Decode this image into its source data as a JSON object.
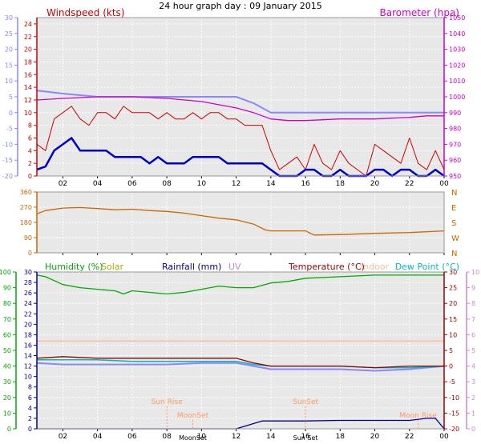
{
  "title": "24 hour graph day : 09 January 2015",
  "colors": {
    "wind_speed": "#cc0000",
    "wind_avg": "#0000cc",
    "barometer": "#cc00cc",
    "temp_left": "#8888ff",
    "direction": "#cc6600",
    "humidity": "#00aa00",
    "solar": "#aaaa00",
    "rainfall": "#000099",
    "uv": "#cc88cc",
    "temperature": "#990000",
    "indoor": "#ffbb99",
    "dewpoint": "#00bbbb",
    "sun_moon": "#ff9966",
    "grid_bg": "#e8e8e8"
  },
  "x_axis": {
    "hours": [
      "02",
      "04",
      "06",
      "08",
      "10",
      "12",
      "14",
      "16",
      "18",
      "20",
      "22",
      "00"
    ],
    "start_hour": 0.5,
    "end_hour": 24
  },
  "chart_data": [
    {
      "type": "line",
      "name": "wind-and-barometer",
      "labels": {
        "left": "Windspeed (kts)",
        "right": "Barometer (hpa)"
      },
      "y_left": {
        "ticks": [
          0,
          2,
          4,
          6,
          8,
          10,
          12,
          14,
          16,
          18,
          20,
          22,
          24
        ],
        "range": [
          0,
          25
        ]
      },
      "y_far_left": {
        "ticks": [
          "30",
          "25",
          "20",
          "15",
          "10",
          "5",
          "0",
          "-5",
          "-10",
          "-15",
          "-20"
        ],
        "range": [
          -20,
          30
        ]
      },
      "y_right": {
        "ticks": [
          950,
          960,
          970,
          980,
          990,
          1000,
          1010,
          1020,
          1030,
          1040,
          1050
        ],
        "range": [
          950,
          1050
        ]
      },
      "series": [
        {
          "key": "gust",
          "x": [
            0.5,
            1,
            1.5,
            2,
            2.5,
            3,
            3.5,
            4,
            4.5,
            5,
            5.5,
            6,
            6.5,
            7,
            7.5,
            8,
            8.5,
            9,
            9.5,
            10,
            10.5,
            11,
            11.5,
            12,
            12.5,
            13,
            13.5,
            14,
            14.5,
            15,
            15.5,
            16,
            16.5,
            17,
            17.5,
            18,
            18.5,
            19,
            19.5,
            20,
            20.5,
            21,
            21.5,
            22,
            22.5,
            23,
            23.5,
            24
          ],
          "values": [
            5,
            4,
            9,
            10,
            11,
            9,
            8,
            10,
            10,
            9,
            11,
            10,
            10,
            10,
            9,
            10,
            9,
            9,
            10,
            9,
            10,
            10,
            9,
            9,
            8,
            8,
            8,
            4,
            1,
            2,
            3,
            1,
            5,
            2,
            1,
            4,
            2,
            1,
            0,
            5,
            4,
            3,
            2,
            6,
            2,
            1,
            4,
            1
          ]
        },
        {
          "key": "average",
          "x": [
            0.5,
            1,
            1.5,
            2,
            2.5,
            3,
            3.5,
            4,
            4.5,
            5,
            5.5,
            6,
            6.5,
            7,
            7.5,
            8,
            8.5,
            9,
            9.5,
            10,
            10.5,
            11,
            11.5,
            12,
            12.5,
            13,
            13.5,
            14,
            14.5,
            15,
            15.5,
            16,
            16.5,
            17,
            17.5,
            18,
            18.5,
            19,
            19.5,
            20,
            20.5,
            21,
            21.5,
            22,
            22.5,
            23,
            23.5,
            24
          ],
          "values": [
            1,
            1.5,
            4,
            5,
            6,
            4,
            4,
            4,
            4,
            3,
            3,
            3,
            3,
            2,
            3,
            2,
            2,
            2,
            3,
            3,
            3,
            3,
            2,
            2,
            2,
            2,
            2,
            1,
            0,
            0,
            0,
            1,
            1,
            0,
            0,
            1,
            0,
            0,
            0,
            1,
            1,
            0,
            1,
            1,
            0,
            0,
            1,
            0
          ]
        },
        {
          "key": "barometer",
          "x": [
            0.5,
            2,
            4,
            6,
            8,
            10,
            11,
            12,
            13,
            14,
            15,
            16,
            18,
            20,
            22,
            23,
            24
          ],
          "values": [
            998,
            999,
            1000,
            1000,
            999,
            997,
            995,
            993,
            990,
            986,
            985,
            985,
            986,
            986,
            987,
            988,
            988
          ]
        },
        {
          "key": "temp_far_left",
          "x": [
            0.5,
            2,
            4,
            6,
            8,
            10,
            11,
            12,
            13,
            14,
            15,
            16,
            18,
            20,
            22,
            23,
            24
          ],
          "values": [
            7,
            6,
            5,
            5,
            5,
            5,
            5,
            5,
            3,
            0,
            0,
            0,
            0,
            0,
            0,
            0,
            0
          ]
        }
      ]
    },
    {
      "type": "line",
      "name": "wind-direction",
      "y_left": {
        "ticks": [
          0,
          90,
          180,
          270,
          360
        ],
        "range": [
          0,
          360
        ]
      },
      "y_right": {
        "ticks": [
          "N",
          "W",
          "S",
          "E",
          "N"
        ]
      },
      "series": [
        {
          "key": "direction",
          "x": [
            0.5,
            1,
            2,
            3,
            4,
            5,
            6,
            7,
            8,
            9,
            10,
            11,
            12,
            13,
            13.7,
            14,
            16,
            16.5,
            18,
            20,
            22,
            24
          ],
          "values": [
            230,
            250,
            265,
            268,
            262,
            255,
            258,
            250,
            245,
            235,
            220,
            205,
            195,
            170,
            135,
            130,
            130,
            105,
            108,
            115,
            120,
            130
          ]
        }
      ]
    },
    {
      "type": "line",
      "name": "humidity-temperature-rain",
      "labels": {
        "humidity": "Humidity (%)",
        "solar": "Solar",
        "rainfall": "Rainfall (mm)",
        "uv": "UV",
        "temperature": "Temperature (°C)",
        "indoor": "Indoor",
        "dewpoint": "Dew Point (°C)"
      },
      "y_humidity": {
        "ticks": [
          0,
          10,
          20,
          30,
          40,
          50,
          60,
          70,
          80,
          90,
          100
        ],
        "range": [
          0,
          100
        ]
      },
      "y_rain": {
        "ticks": [
          0,
          2,
          4,
          6,
          8,
          10,
          12,
          14,
          16,
          18,
          20,
          22,
          24,
          26,
          28,
          30
        ],
        "range": [
          0,
          30
        ]
      },
      "y_temp": {
        "ticks": [
          "-20",
          "-15",
          "-10",
          "-5",
          "0",
          "5",
          "10",
          "15",
          "20",
          "25",
          "30"
        ],
        "range": [
          -20,
          30
        ]
      },
      "y_uv": {
        "ticks": [
          0,
          1,
          2,
          3,
          4,
          5,
          6,
          7,
          8,
          9,
          10
        ],
        "range": [
          0,
          10
        ]
      },
      "series": [
        {
          "key": "humidity",
          "x": [
            0.5,
            1,
            2,
            3,
            4,
            5,
            5.5,
            6,
            7,
            8,
            9,
            10,
            11,
            12,
            13,
            14,
            15,
            16,
            18,
            20,
            22,
            24
          ],
          "values": [
            98,
            97,
            92,
            90,
            89,
            88,
            86,
            88,
            87,
            86,
            87,
            89,
            91,
            90,
            90,
            93,
            94,
            96,
            97,
            98,
            98,
            98
          ]
        },
        {
          "key": "temperature",
          "x": [
            0.5,
            2,
            4,
            6,
            8,
            10,
            12,
            13,
            14,
            16,
            18,
            20,
            22,
            24
          ],
          "values": [
            2.5,
            3,
            2.5,
            2.5,
            2.5,
            2.5,
            2.5,
            1,
            0,
            0,
            0,
            -0.5,
            0,
            0
          ]
        },
        {
          "key": "dewpoint",
          "x": [
            0.5,
            2,
            4,
            6,
            8,
            10,
            12,
            13,
            14,
            16,
            18,
            20,
            22,
            24
          ],
          "values": [
            2,
            2,
            2,
            1.5,
            1.5,
            1.5,
            1.5,
            0.5,
            0,
            0,
            0,
            -0.5,
            -0.5,
            0
          ]
        },
        {
          "key": "indoor",
          "x": [
            0.5,
            24
          ],
          "values": [
            8,
            8
          ]
        },
        {
          "key": "temp_blue",
          "x": [
            0.5,
            2,
            4,
            6,
            8,
            10,
            12,
            13,
            14,
            16,
            18,
            20,
            22,
            24
          ],
          "values": [
            1,
            0.5,
            0.5,
            0.5,
            0.5,
            1,
            1,
            0,
            -1,
            -1,
            -1,
            -1.5,
            -1,
            0
          ]
        },
        {
          "key": "rainfall",
          "x": [
            0.5,
            10,
            12,
            12.5,
            13,
            13.5,
            14,
            16,
            18,
            20,
            22,
            23,
            23.5,
            24
          ],
          "values": [
            0,
            0,
            0,
            0.5,
            1,
            1.5,
            1.5,
            1.5,
            1.6,
            1.6,
            1.6,
            2,
            2,
            0
          ]
        }
      ],
      "annotations": [
        {
          "text": "Sun Rise",
          "x": 8
        },
        {
          "text": "MoonSet",
          "x": 9.5
        },
        {
          "text": "SunSet",
          "x": 16
        },
        {
          "text": "Moon Rise",
          "x": 22.5
        }
      ],
      "bottom_labels": [
        "MoonSet",
        "Sun Set"
      ]
    }
  ]
}
